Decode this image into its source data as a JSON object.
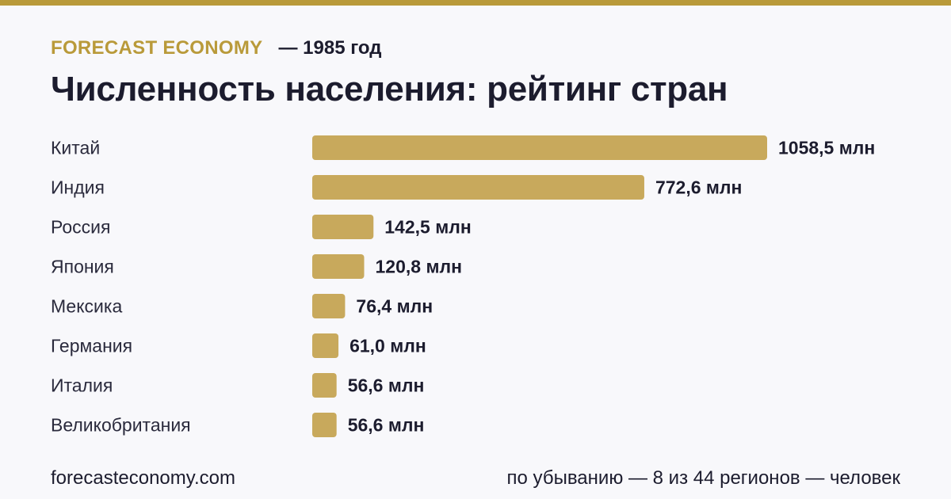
{
  "header": {
    "brand": "FORECAST ECONOMY",
    "subtitle": "— 1985 год",
    "title": "Численность населения: рейтинг стран"
  },
  "footer": {
    "site": "forecasteconomy.com",
    "note": "по убыванию — 8 из 44 регионов — человек"
  },
  "colors": {
    "accent": "#b99a3a",
    "bar": "#c8a95c",
    "text": "#1c1c2e",
    "background": "#f8f8fb"
  },
  "chart_data": {
    "type": "bar",
    "orientation": "horizontal",
    "categories": [
      "Китай",
      "Индия",
      "Россия",
      "Япония",
      "Мексика",
      "Германия",
      "Италия",
      "Великобритания"
    ],
    "values": [
      1058.5,
      772.6,
      142.5,
      120.8,
      76.4,
      61.0,
      56.6,
      56.6
    ],
    "value_labels": [
      "1058,5 млн",
      "772,6 млн",
      "142,5 млн",
      "120,8 млн",
      "76,4 млн",
      "61,0 млн",
      "56,6 млн",
      "56,6 млн"
    ],
    "unit": "млн",
    "xlim": [
      0,
      1058.5
    ],
    "grid": false,
    "legend": "none"
  }
}
